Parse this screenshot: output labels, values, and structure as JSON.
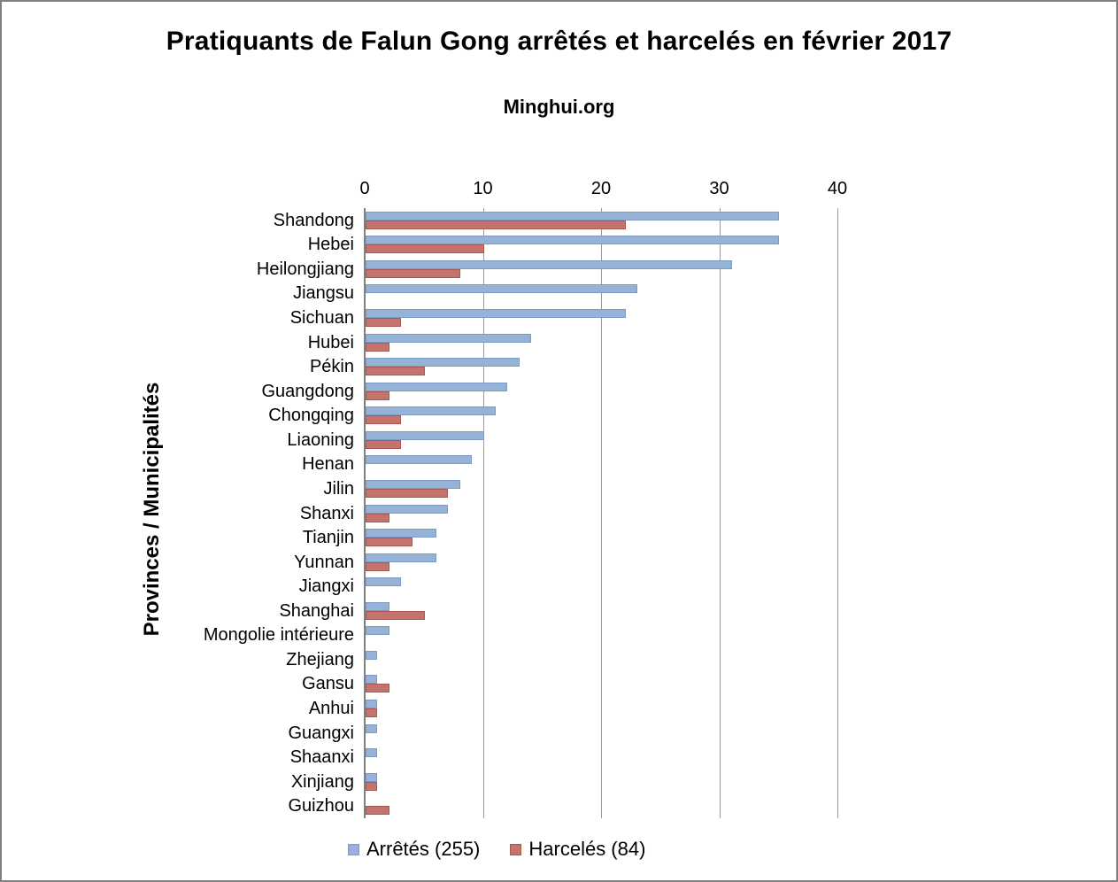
{
  "header": {
    "title": "Pratiquants de Falun Gong arrêtés et harcelés en février 2017",
    "subtitle": "Minghui.org"
  },
  "colors": {
    "frame_border": "#7F7F7F",
    "gridline": "#9B9B9B",
    "axis_line": "#808080",
    "text": "#000000",
    "series_arretes": "#95B3D7",
    "series_harceles": "#C4736D"
  },
  "chart_data": {
    "type": "bar",
    "orientation": "horizontal",
    "title": "Pratiquants de Falun Gong arrêtés et harcelés en février 2017",
    "subtitle": "Minghui.org",
    "xlabel": "",
    "ylabel": "Provinces / Municipalités",
    "xlim": [
      0,
      40
    ],
    "x_ticks": [
      0,
      10,
      20,
      30,
      40
    ],
    "gridlines": true,
    "legend_position": "bottom",
    "categories": [
      "Shandong",
      "Hebei",
      "Heilongjiang",
      "Jiangsu",
      "Sichuan",
      "Hubei",
      "Pékin",
      "Guangdong",
      "Chongqing",
      "Liaoning",
      "Henan",
      "Jilin",
      "Shanxi",
      "Tianjin",
      "Yunnan",
      "Jiangxi",
      "Shanghai",
      "Mongolie intérieure",
      "Zhejiang",
      "Gansu",
      "Anhui",
      "Guangxi",
      "Shaanxi",
      "Xinjiang",
      "Guizhou"
    ],
    "series": [
      {
        "name": "Arrêtés (255)",
        "total": 255,
        "color": "#95B3D7",
        "border_color": "#7E9AC4",
        "values": [
          35,
          35,
          31,
          23,
          22,
          14,
          13,
          12,
          11,
          10,
          9,
          8,
          7,
          6,
          6,
          3,
          2,
          2,
          1,
          1,
          1,
          1,
          1,
          1,
          0
        ]
      },
      {
        "name": "Harcelés (84)",
        "total": 84,
        "color": "#C4736D",
        "border_color": "#AA5752",
        "values": [
          22,
          10,
          8,
          0,
          3,
          2,
          5,
          2,
          3,
          3,
          0,
          7,
          2,
          4,
          2,
          0,
          5,
          0,
          0,
          2,
          1,
          0,
          0,
          1,
          2
        ]
      }
    ]
  }
}
